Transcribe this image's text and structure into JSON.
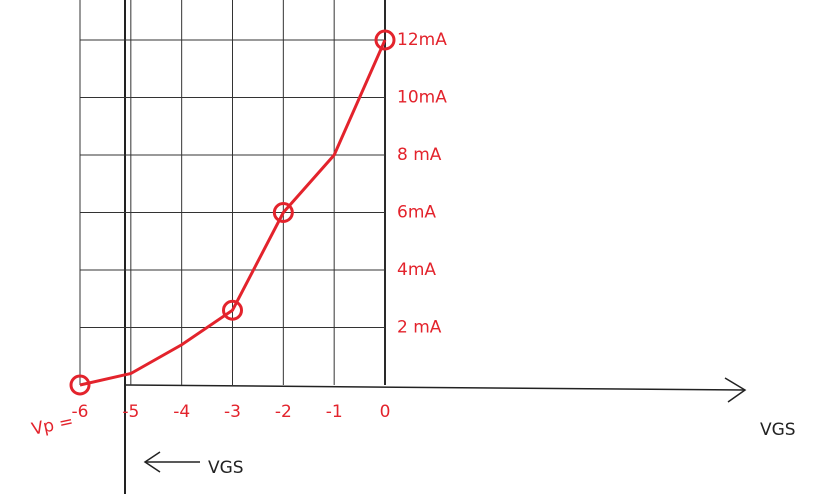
{
  "chart_data": {
    "type": "line",
    "x": [
      -6,
      -5,
      -4,
      -3,
      -2,
      -1,
      0
    ],
    "series": [
      {
        "color": "#e3232c",
        "values": [
          0,
          0.4,
          1.4,
          2.6,
          6,
          8,
          12
        ]
      }
    ],
    "points": {
      "x": [
        -6,
        -3,
        -2,
        0
      ],
      "values": [
        0,
        2.6,
        6,
        12
      ]
    },
    "xlim": [
      -6,
      0
    ],
    "ylim": [
      0,
      12
    ],
    "xticks": [
      -6,
      -5,
      -4,
      -3,
      -2,
      -1,
      0
    ],
    "yticks": [
      {
        "value": 2,
        "label": "2 mA"
      },
      {
        "value": 4,
        "label": "4mA"
      },
      {
        "value": 6,
        "label": "6mA"
      },
      {
        "value": 8,
        "label": "8 mA"
      },
      {
        "value": 10,
        "label": "10mA"
      },
      {
        "value": 12,
        "label": "12mA"
      }
    ],
    "grid": true,
    "annotations": [
      "Vp =",
      "VGS",
      "VGS"
    ]
  }
}
